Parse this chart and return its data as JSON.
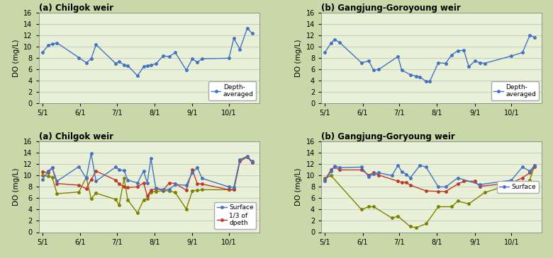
{
  "background_color": "#c8d8a8",
  "plot_bg_color": "#e8f0d8",
  "grid_color": "#bbbbbb",
  "titles": [
    "(a) Chilgok weir",
    "(b) Gangjung-Goroyoung weir",
    "(a) Chilgok weir",
    "(b) Gangjung-Goryoung weir"
  ],
  "ylabel": "DO (mg/L)",
  "ylim": [
    0,
    16
  ],
  "yticks": [
    0,
    2,
    4,
    6,
    8,
    10,
    12,
    14,
    16
  ],
  "xtick_labels": [
    "5/1",
    "6/1",
    "7/1",
    "8/1",
    "9/1",
    "10/1"
  ],
  "xtick_positions": [
    0,
    31,
    61,
    92,
    123,
    153
  ],
  "depth_avg_color": "#4472c4",
  "surface_color": "#4472c4",
  "third_depth_color": "#c0392b",
  "bottom_color": "#808000",
  "chilgok_depth_avg": [
    9.0,
    10.3,
    10.5,
    10.7,
    8.1,
    7.2,
    7.9,
    10.4,
    7.1,
    7.4,
    6.8,
    6.7,
    4.9,
    6.5,
    6.7,
    6.8,
    7.0,
    8.4,
    8.3,
    9.0,
    5.9,
    7.9,
    7.3,
    7.9,
    8.0,
    11.5,
    9.6,
    13.3,
    12.4
  ],
  "chilgok_depth_avg_x": [
    0,
    5,
    8,
    12,
    30,
    36,
    40,
    44,
    60,
    63,
    67,
    70,
    78,
    83,
    86,
    89,
    93,
    99,
    104,
    109,
    118,
    123,
    127,
    131,
    153,
    157,
    162,
    168,
    172
  ],
  "gangjung_depth_avg": [
    9.0,
    10.7,
    11.3,
    10.8,
    7.2,
    7.5,
    5.9,
    6.0,
    8.3,
    5.9,
    5.1,
    4.8,
    4.7,
    3.9,
    3.9,
    7.2,
    7.1,
    8.6,
    9.3,
    9.4,
    6.5,
    7.5,
    7.2,
    7.1,
    8.4,
    9.0,
    12.0,
    11.7
  ],
  "gangjung_depth_avg_x": [
    0,
    5,
    8,
    12,
    30,
    36,
    40,
    44,
    60,
    63,
    70,
    75,
    78,
    83,
    86,
    93,
    99,
    104,
    109,
    114,
    118,
    123,
    127,
    131,
    153,
    162,
    168,
    172
  ],
  "chilgok_surface": [
    9.3,
    10.8,
    11.4,
    9.0,
    11.6,
    9.5,
    13.9,
    9.0,
    11.5,
    11.0,
    10.9,
    9.2,
    8.7,
    10.8,
    8.7,
    13.0,
    7.8,
    7.5,
    7.6,
    8.4,
    8.3,
    10.5,
    11.4,
    9.5,
    8.0,
    7.9,
    12.8,
    13.4,
    12.5
  ],
  "chilgok_surface_x": [
    0,
    5,
    8,
    12,
    30,
    36,
    40,
    44,
    60,
    63,
    67,
    70,
    78,
    83,
    86,
    89,
    93,
    99,
    104,
    109,
    118,
    123,
    127,
    131,
    153,
    157,
    162,
    168,
    172
  ],
  "chilgok_third": [
    10.7,
    10.5,
    11.4,
    8.6,
    8.3,
    7.7,
    9.3,
    10.8,
    9.2,
    8.5,
    8.0,
    7.9,
    8.0,
    8.7,
    6.4,
    7.4,
    7.7,
    7.4,
    8.7,
    8.6,
    7.4,
    11.0,
    8.6,
    8.5,
    7.5,
    7.5,
    12.5,
    13.3,
    12.3
  ],
  "chilgok_third_x": [
    0,
    5,
    8,
    12,
    30,
    36,
    40,
    44,
    60,
    63,
    67,
    70,
    78,
    83,
    86,
    89,
    93,
    99,
    104,
    109,
    118,
    123,
    127,
    131,
    153,
    157,
    162,
    168,
    172
  ],
  "chilgok_bottom": [
    10.0,
    9.9,
    9.7,
    6.8,
    7.1,
    9.7,
    5.9,
    6.9,
    5.8,
    4.8,
    9.5,
    5.7,
    3.4,
    5.7,
    5.9,
    7.1,
    7.2,
    7.3,
    7.3,
    7.0,
    4.1,
    7.3,
    7.4,
    7.5,
    7.5,
    7.5,
    12.8,
    13.3,
    12.4
  ],
  "chilgok_bottom_x": [
    0,
    5,
    8,
    12,
    30,
    36,
    40,
    44,
    60,
    63,
    67,
    70,
    78,
    83,
    86,
    89,
    93,
    99,
    104,
    109,
    118,
    123,
    127,
    131,
    153,
    157,
    162,
    168,
    172
  ],
  "gangjung_surface": [
    9.0,
    10.8,
    11.7,
    11.4,
    11.5,
    9.8,
    10.3,
    10.5,
    10.0,
    11.8,
    10.7,
    10.2,
    9.6,
    11.8,
    11.5,
    8.0,
    8.0,
    9.6,
    8.4,
    9.2,
    11.5,
    10.8,
    11.8
  ],
  "gangjung_surface_x": [
    0,
    5,
    8,
    12,
    30,
    36,
    40,
    44,
    55,
    60,
    63,
    67,
    70,
    78,
    83,
    93,
    99,
    109,
    127,
    153,
    162,
    168,
    172
  ],
  "gangjung_third": [
    9.2,
    11.0,
    11.5,
    11.0,
    11.0,
    10.1,
    10.5,
    10.1,
    9.0,
    8.8,
    8.8,
    8.3,
    7.3,
    7.2,
    7.2,
    8.5,
    9.0,
    9.0,
    8.1,
    8.7,
    9.6,
    10.5,
    11.5
  ],
  "gangjung_third_x": [
    0,
    5,
    8,
    12,
    30,
    36,
    40,
    44,
    60,
    63,
    67,
    70,
    83,
    93,
    99,
    109,
    114,
    123,
    127,
    153,
    162,
    168,
    172
  ],
  "gangjung_bottom": [
    9.5,
    10.0,
    4.0,
    4.5,
    4.5,
    2.5,
    2.8,
    1.0,
    0.8,
    1.5,
    4.5,
    4.5,
    5.5,
    5.0,
    7.0,
    8.5,
    8.3,
    8.2,
    9.2,
    11.8
  ],
  "gangjung_bottom_x": [
    0,
    5,
    30,
    36,
    40,
    55,
    60,
    70,
    75,
    83,
    93,
    104,
    109,
    118,
    131,
    153,
    157,
    162,
    168,
    172
  ]
}
